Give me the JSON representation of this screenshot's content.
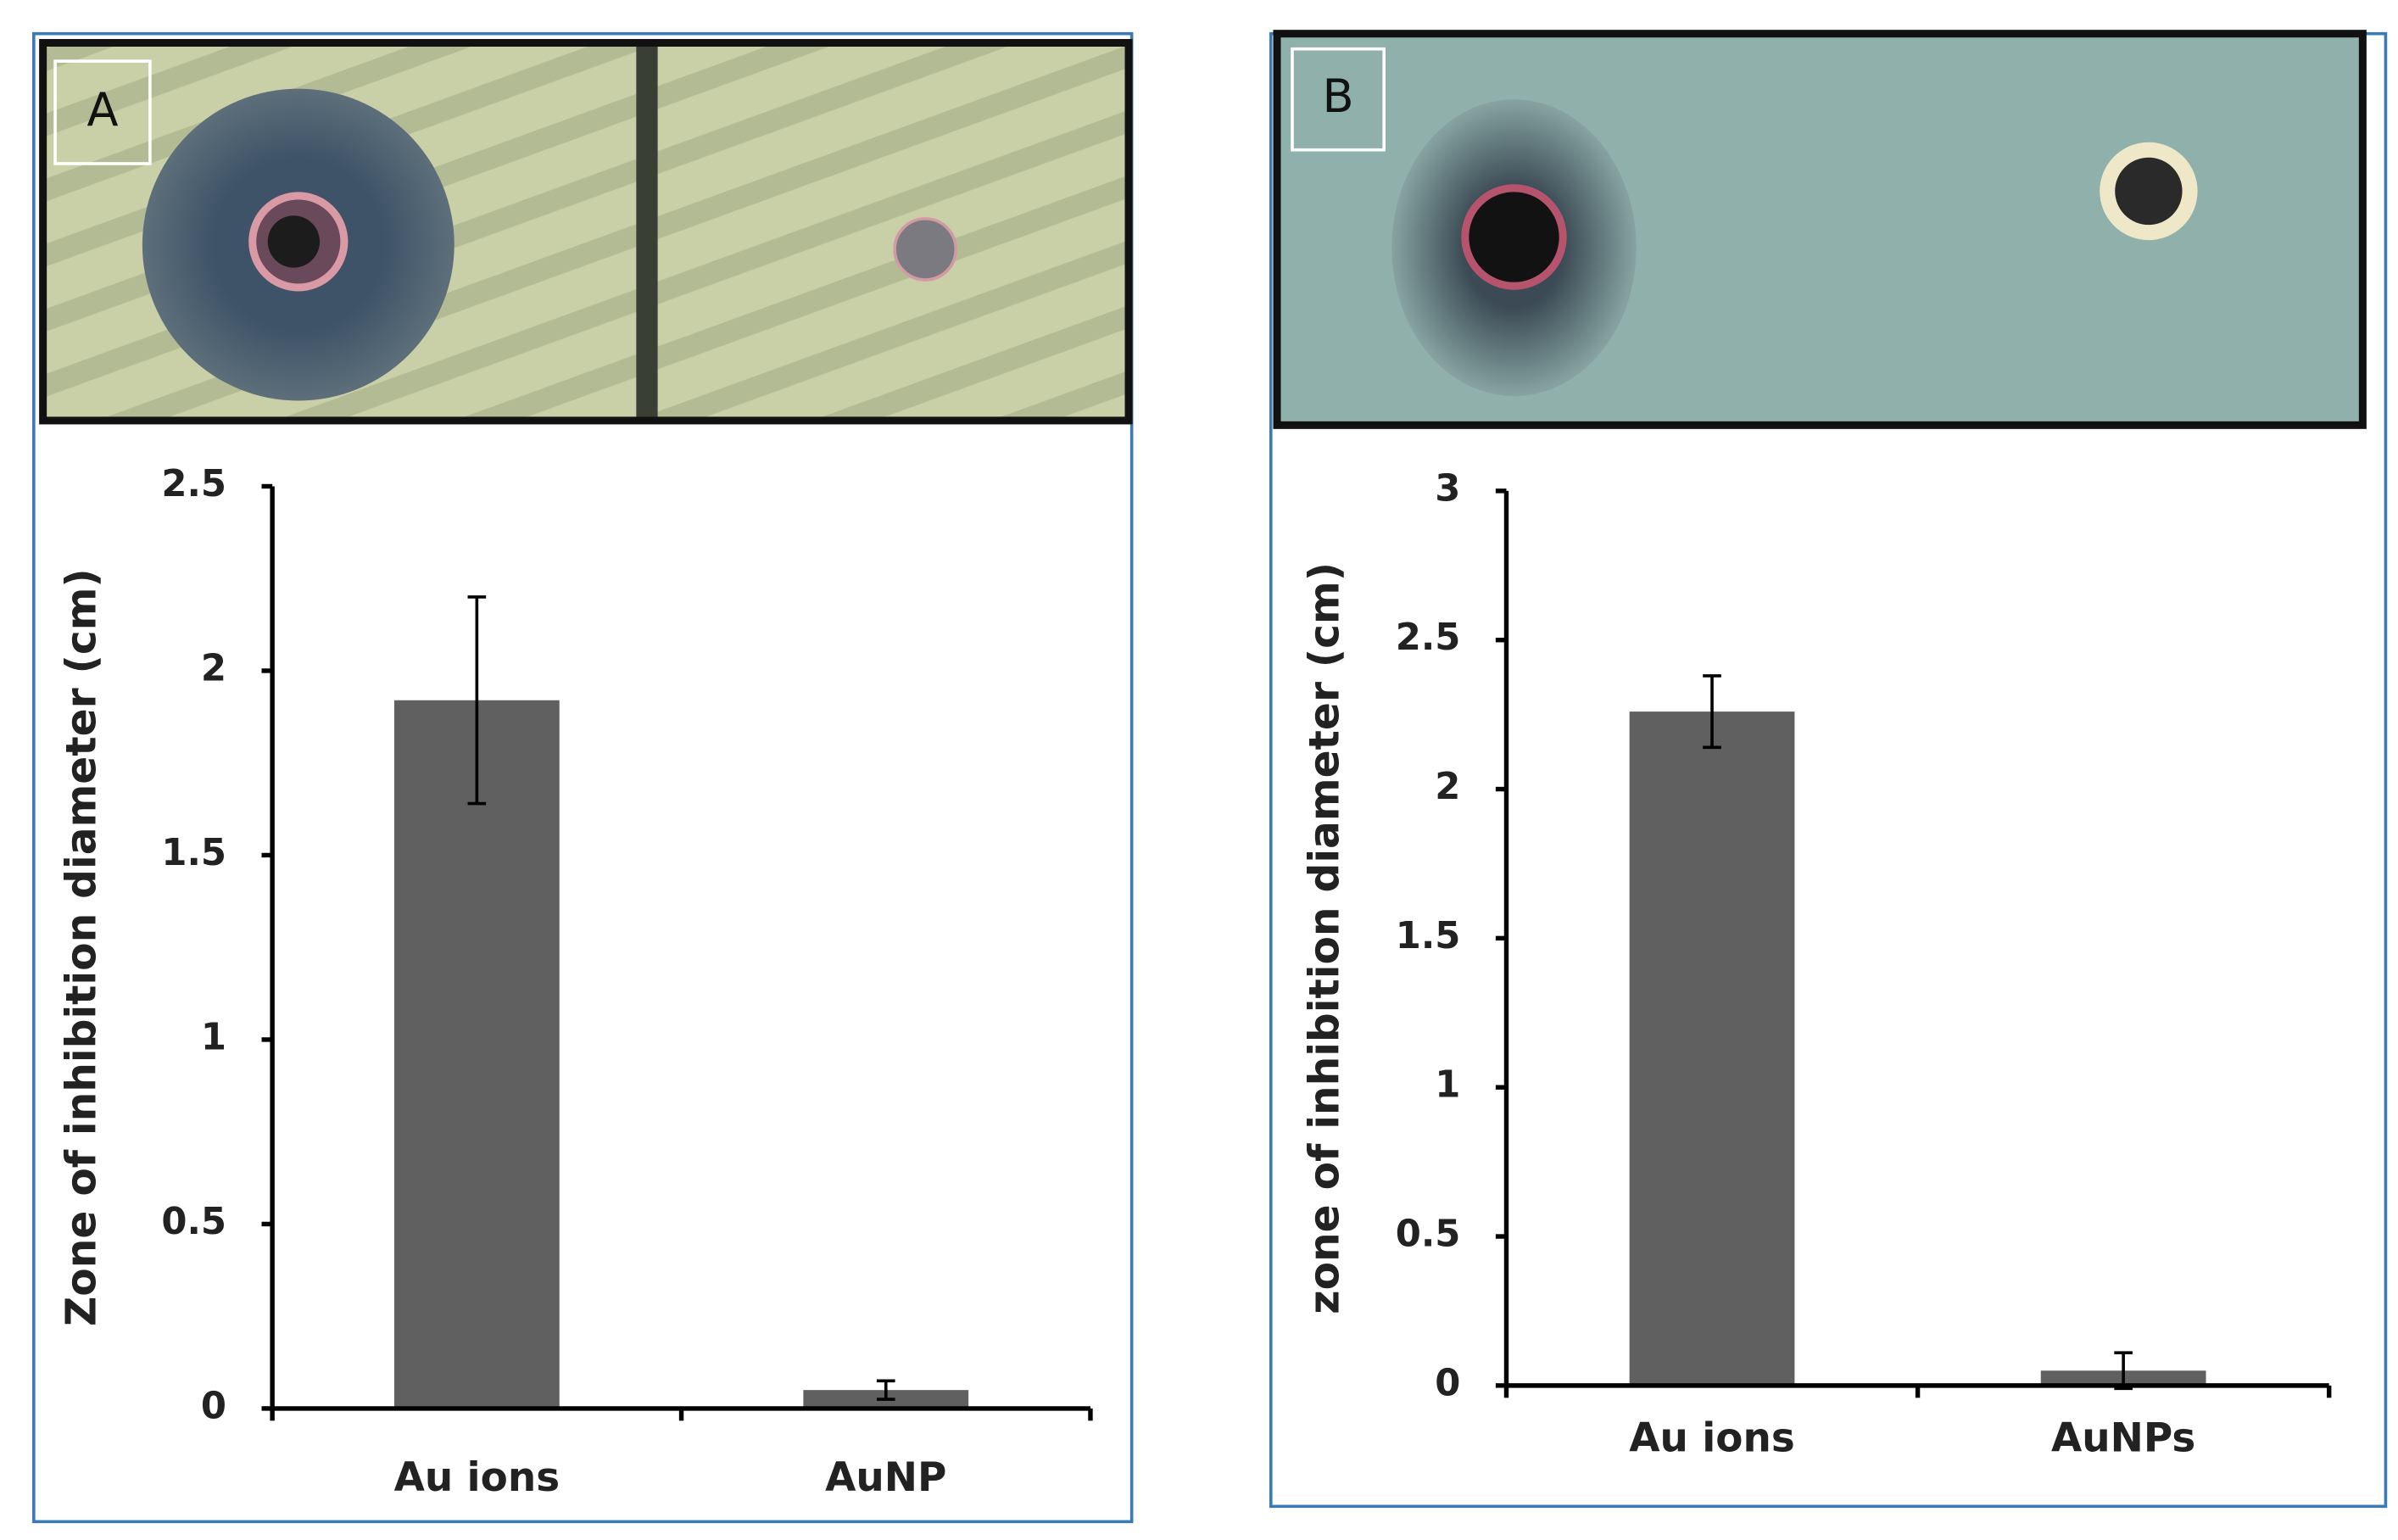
{
  "chart_data": [
    {
      "type": "bar",
      "panel": "A",
      "ylabel": "Zone of inhibition diameter (cm)",
      "categories": [
        "Au ions",
        "AuNP"
      ],
      "values": [
        1.92,
        0.05
      ],
      "errors": [
        0.28,
        0.025
      ],
      "color": "#606060",
      "ylim": [
        0,
        2.5
      ],
      "yticks": [
        0,
        0.5,
        1,
        1.5,
        2,
        2.5
      ]
    },
    {
      "type": "bar",
      "panel": "B",
      "ylabel": "zone of inhibition diameter (cm)",
      "categories": [
        "Au ions",
        "AuNPs"
      ],
      "values": [
        2.26,
        0.05
      ],
      "errors": [
        0.12,
        0.06
      ],
      "color": "#606060",
      "ylim": [
        0,
        3
      ],
      "yticks": [
        0,
        0.5,
        1,
        1.5,
        2,
        2.5,
        3
      ]
    }
  ]
}
